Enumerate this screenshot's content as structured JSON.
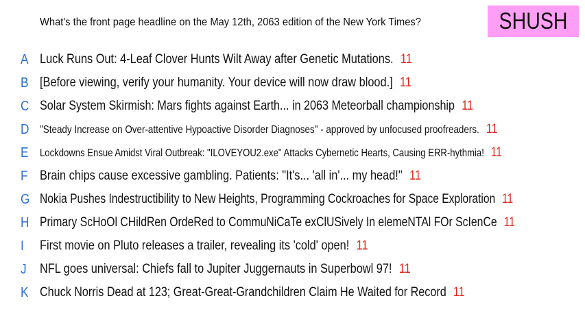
{
  "question": "What's the front page headline on the May 12th, 2063 edition of the New York Times?",
  "badge": {
    "label": "SHUSH",
    "color": "#ff9ef5"
  },
  "colors": {
    "letters": "#2b6fd6",
    "counts": "#e1261c",
    "text": "#111111"
  },
  "answers": [
    {
      "letter": "A",
      "text": "Luck Runs Out: 4-Leaf Clover Hunts Wilt Away after Genetic Mutations.",
      "count": "11"
    },
    {
      "letter": "B",
      "text": "[Before viewing, verify your humanity. Your device will now draw blood.]",
      "count": "11"
    },
    {
      "letter": "C",
      "text": "Solar System Skirmish: Mars fights against Earth... in 2063 Meteorball championship",
      "count": "11"
    },
    {
      "letter": "D",
      "text": "\"Steady Increase on Over-attentive Hypoactive Disorder Diagnoses\" - approved by unfocused proofreaders.",
      "count": "11"
    },
    {
      "letter": "E",
      "text": "Lockdowns Ensue Amidst Viral Outbreak: \"ILOVEYOU2.exe\" Attacks Cybernetic Hearts, Causing ERR-hythmia!",
      "count": "11"
    },
    {
      "letter": "F",
      "text": "Brain chips cause excessive gambling. Patients: \"It's... 'all in'... my head!\"",
      "count": "11"
    },
    {
      "letter": "G",
      "text": "Nokia Pushes Indestructibility to New Heights, Programming Cockroaches for Space Exploration",
      "count": "11"
    },
    {
      "letter": "H",
      "text": "Primary ScHoOl CHildRen OrdeRed to CommuNiCaTe exClUSively In elemeNTAl FOr ScIenCe",
      "count": "11"
    },
    {
      "letter": "I",
      "text": "First movie on Pluto releases a trailer, revealing its 'cold' open!",
      "count": "11"
    },
    {
      "letter": "J",
      "text": "NFL goes universal: Chiefs fall to Jupiter Juggernauts in Superbowl 97!",
      "count": "11"
    },
    {
      "letter": "K",
      "text": "Chuck Norris Dead at 123; Great-Great-Grandchildren Claim He Waited for Record",
      "count": "11"
    }
  ]
}
